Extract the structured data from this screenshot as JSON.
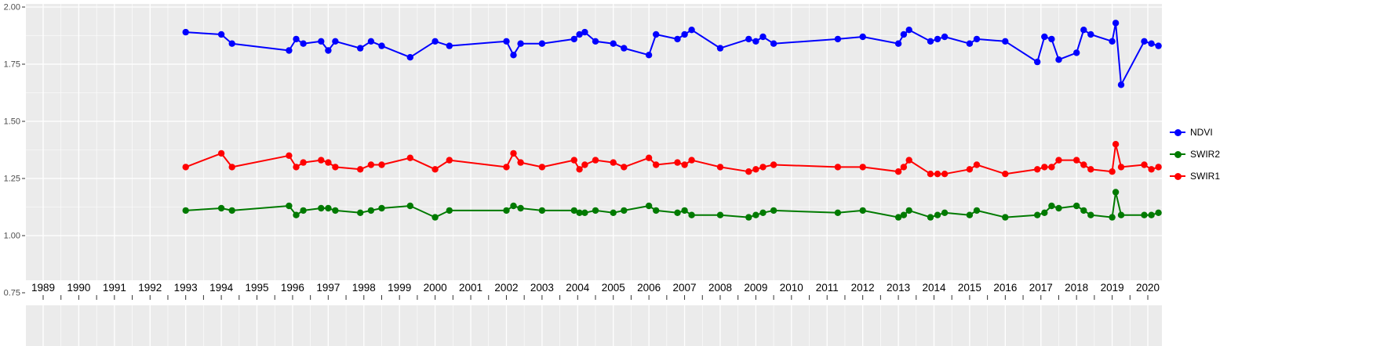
{
  "chart_data": {
    "type": "line",
    "title": "",
    "xlabel": "",
    "ylabel": "",
    "panel_bg": "#EBEBEB",
    "grid_color": "#FFFFFF",
    "tick_label_color": "#4D4D4D",
    "axis_text_color": "#000000",
    "x_axis": {
      "ticks": [
        "1989",
        "1990",
        "1991",
        "1992",
        "1993",
        "1994",
        "1995",
        "1996",
        "1997",
        "1998",
        "1999",
        "2000",
        "2001",
        "2002",
        "2003",
        "2004",
        "2005",
        "2006",
        "2007",
        "2008",
        "2009",
        "2010",
        "2011",
        "2012",
        "2013",
        "2014",
        "2015",
        "2016",
        "2017",
        "2018",
        "2019",
        "2020"
      ],
      "range": [
        1988.5,
        2020.45
      ]
    },
    "y_axis": {
      "ticks": [
        {
          "label": "2.00",
          "value": 2.0
        },
        {
          "label": "1.75",
          "value": 1.75
        },
        {
          "label": "1.50",
          "value": 1.5
        },
        {
          "label": "1.25",
          "value": 1.25
        },
        {
          "label": "1.00",
          "value": 1.0
        },
        {
          "label": "0.75",
          "value": 0.75
        }
      ],
      "range": [
        0.75,
        2.0
      ]
    },
    "legend": {
      "position": "right",
      "items": [
        "NDVI",
        "SWIR2",
        "SWIR1"
      ]
    },
    "x": [
      1993.0,
      1994.0,
      1994.3,
      1995.9,
      1996.1,
      1996.3,
      1996.8,
      1997.0,
      1997.2,
      1997.9,
      1998.2,
      1998.5,
      1999.3,
      2000.0,
      2000.4,
      2002.0,
      2002.2,
      2002.4,
      2003.0,
      2003.9,
      2004.05,
      2004.2,
      2004.5,
      2005.0,
      2005.3,
      2006.0,
      2006.2,
      2006.8,
      2007.0,
      2007.2,
      2008.0,
      2008.8,
      2009.0,
      2009.2,
      2009.5,
      2011.3,
      2012.0,
      2013.0,
      2013.15,
      2013.3,
      2013.9,
      2014.1,
      2014.3,
      2015.0,
      2015.2,
      2016.0,
      2016.9,
      2017.1,
      2017.3,
      2017.5,
      2018.0,
      2018.2,
      2018.4,
      2019.0,
      2019.1,
      2019.25,
      2019.9,
      2020.1,
      2020.3
    ],
    "series": [
      {
        "name": "NDVI",
        "color": "#0000FF",
        "values": [
          1.89,
          1.88,
          1.84,
          1.81,
          1.86,
          1.84,
          1.85,
          1.81,
          1.85,
          1.82,
          1.85,
          1.83,
          1.78,
          1.85,
          1.83,
          1.85,
          1.79,
          1.84,
          1.84,
          1.86,
          1.88,
          1.89,
          1.85,
          1.84,
          1.82,
          1.79,
          1.88,
          1.86,
          1.88,
          1.9,
          1.82,
          1.86,
          1.85,
          1.87,
          1.84,
          1.86,
          1.87,
          1.84,
          1.88,
          1.9,
          1.85,
          1.86,
          1.87,
          1.84,
          1.86,
          1.85,
          1.76,
          1.87,
          1.86,
          1.77,
          1.8,
          1.9,
          1.88,
          1.85,
          1.93,
          1.66,
          1.85,
          1.84,
          1.83
        ]
      },
      {
        "name": "SWIR2",
        "color": "#007A00",
        "values": [
          1.11,
          1.12,
          1.11,
          1.13,
          1.09,
          1.11,
          1.12,
          1.12,
          1.11,
          1.1,
          1.11,
          1.12,
          1.13,
          1.08,
          1.11,
          1.11,
          1.13,
          1.12,
          1.11,
          1.11,
          1.1,
          1.1,
          1.11,
          1.1,
          1.11,
          1.13,
          1.11,
          1.1,
          1.11,
          1.09,
          1.09,
          1.08,
          1.09,
          1.1,
          1.11,
          1.1,
          1.11,
          1.08,
          1.09,
          1.11,
          1.08,
          1.09,
          1.1,
          1.09,
          1.11,
          1.08,
          1.09,
          1.1,
          1.13,
          1.12,
          1.13,
          1.11,
          1.09,
          1.08,
          1.19,
          1.09,
          1.09,
          1.09,
          1.1
        ]
      },
      {
        "name": "SWIR1",
        "color": "#FF0000",
        "values": [
          1.3,
          1.36,
          1.3,
          1.35,
          1.3,
          1.32,
          1.33,
          1.32,
          1.3,
          1.29,
          1.31,
          1.31,
          1.34,
          1.29,
          1.33,
          1.3,
          1.36,
          1.32,
          1.3,
          1.33,
          1.29,
          1.31,
          1.33,
          1.32,
          1.3,
          1.34,
          1.31,
          1.32,
          1.31,
          1.33,
          1.3,
          1.28,
          1.29,
          1.3,
          1.31,
          1.3,
          1.3,
          1.28,
          1.3,
          1.33,
          1.27,
          1.27,
          1.27,
          1.29,
          1.31,
          1.27,
          1.29,
          1.3,
          1.3,
          1.33,
          1.33,
          1.31,
          1.29,
          1.28,
          1.4,
          1.3,
          1.31,
          1.29,
          1.3
        ]
      }
    ]
  }
}
